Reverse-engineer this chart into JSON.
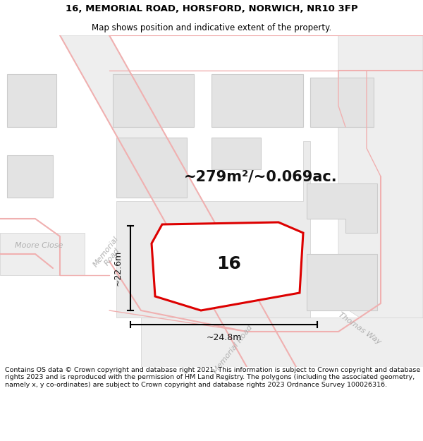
{
  "title": "16, MEMORIAL ROAD, HORSFORD, NORWICH, NR10 3FP",
  "subtitle": "Map shows position and indicative extent of the property.",
  "area_text": "~279m²/~0.069ac.",
  "number_label": "16",
  "dim_width": "~24.8m",
  "dim_height": "~22.6m",
  "footer_text": "Contains OS data © Crown copyright and database right 2021. This information is subject to Crown copyright and database rights 2023 and is reproduced with the permission of HM Land Registry. The polygons (including the associated geometry, namely x, y co-ordinates) are subject to Crown copyright and database rights 2023 Ordnance Survey 100026316.",
  "bg_color": "#f8f8f8",
  "road_color": "#eeeeee",
  "building_fill": "#e3e3e3",
  "building_stroke": "#cccccc",
  "road_line_color": "#f0b0b0",
  "prop_stroke": "#dd0000",
  "prop_fill": "#ffffff",
  "title_fontsize": 9.5,
  "subtitle_fontsize": 8.5,
  "area_fontsize": 15,
  "number_fontsize": 18,
  "street_fontsize": 8,
  "footer_fontsize": 6.8
}
